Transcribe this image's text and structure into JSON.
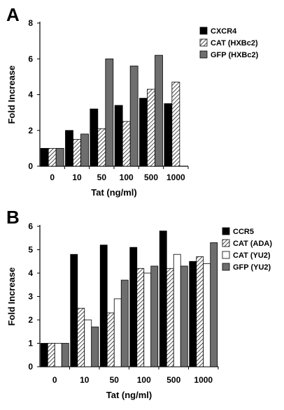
{
  "chart_data": [
    {
      "panel": "A",
      "type": "bar",
      "categories": [
        "0",
        "10",
        "50",
        "100",
        "500",
        "1000"
      ],
      "xlabel": "Tat (ng/ml)",
      "ylabel": "Fold Increase",
      "ylim": [
        0,
        8
      ],
      "yticks": [
        "0",
        "2",
        "4",
        "6",
        "8"
      ],
      "legend_position": "top-right",
      "series": [
        {
          "name": "CXCR4",
          "values": [
            1.0,
            2.0,
            3.2,
            3.4,
            3.8,
            3.5
          ],
          "fill": "black"
        },
        {
          "name": "CAT (HXBc2)",
          "values": [
            1.0,
            1.5,
            2.1,
            2.5,
            4.3,
            4.7
          ],
          "fill": "hatch"
        },
        {
          "name": "GFP (HXBc2)",
          "values": [
            1.0,
            1.8,
            6.0,
            5.6,
            6.2,
            null
          ],
          "fill": "gray"
        }
      ]
    },
    {
      "panel": "B",
      "type": "bar",
      "categories": [
        "0",
        "10",
        "50",
        "100",
        "500",
        "1000"
      ],
      "xlabel": "Tat (ng/ml)",
      "ylabel": "Fold Increase",
      "ylim": [
        0,
        6
      ],
      "yticks": [
        "0",
        "1",
        "2",
        "3",
        "4",
        "5",
        "6"
      ],
      "legend_position": "top-right",
      "series": [
        {
          "name": "CCR5",
          "values": [
            1.0,
            4.8,
            5.2,
            5.1,
            5.8,
            4.5
          ],
          "fill": "black"
        },
        {
          "name": "CAT (ADA)",
          "values": [
            1.0,
            2.5,
            2.3,
            4.2,
            4.2,
            4.7
          ],
          "fill": "hatch"
        },
        {
          "name": "CAT (YU2)",
          "values": [
            1.0,
            2.0,
            2.9,
            4.0,
            4.8,
            4.4
          ],
          "fill": "white"
        },
        {
          "name": "GFP (YU2)",
          "values": [
            1.0,
            1.7,
            3.7,
            4.3,
            4.3,
            5.3
          ],
          "fill": "gray"
        }
      ]
    }
  ]
}
